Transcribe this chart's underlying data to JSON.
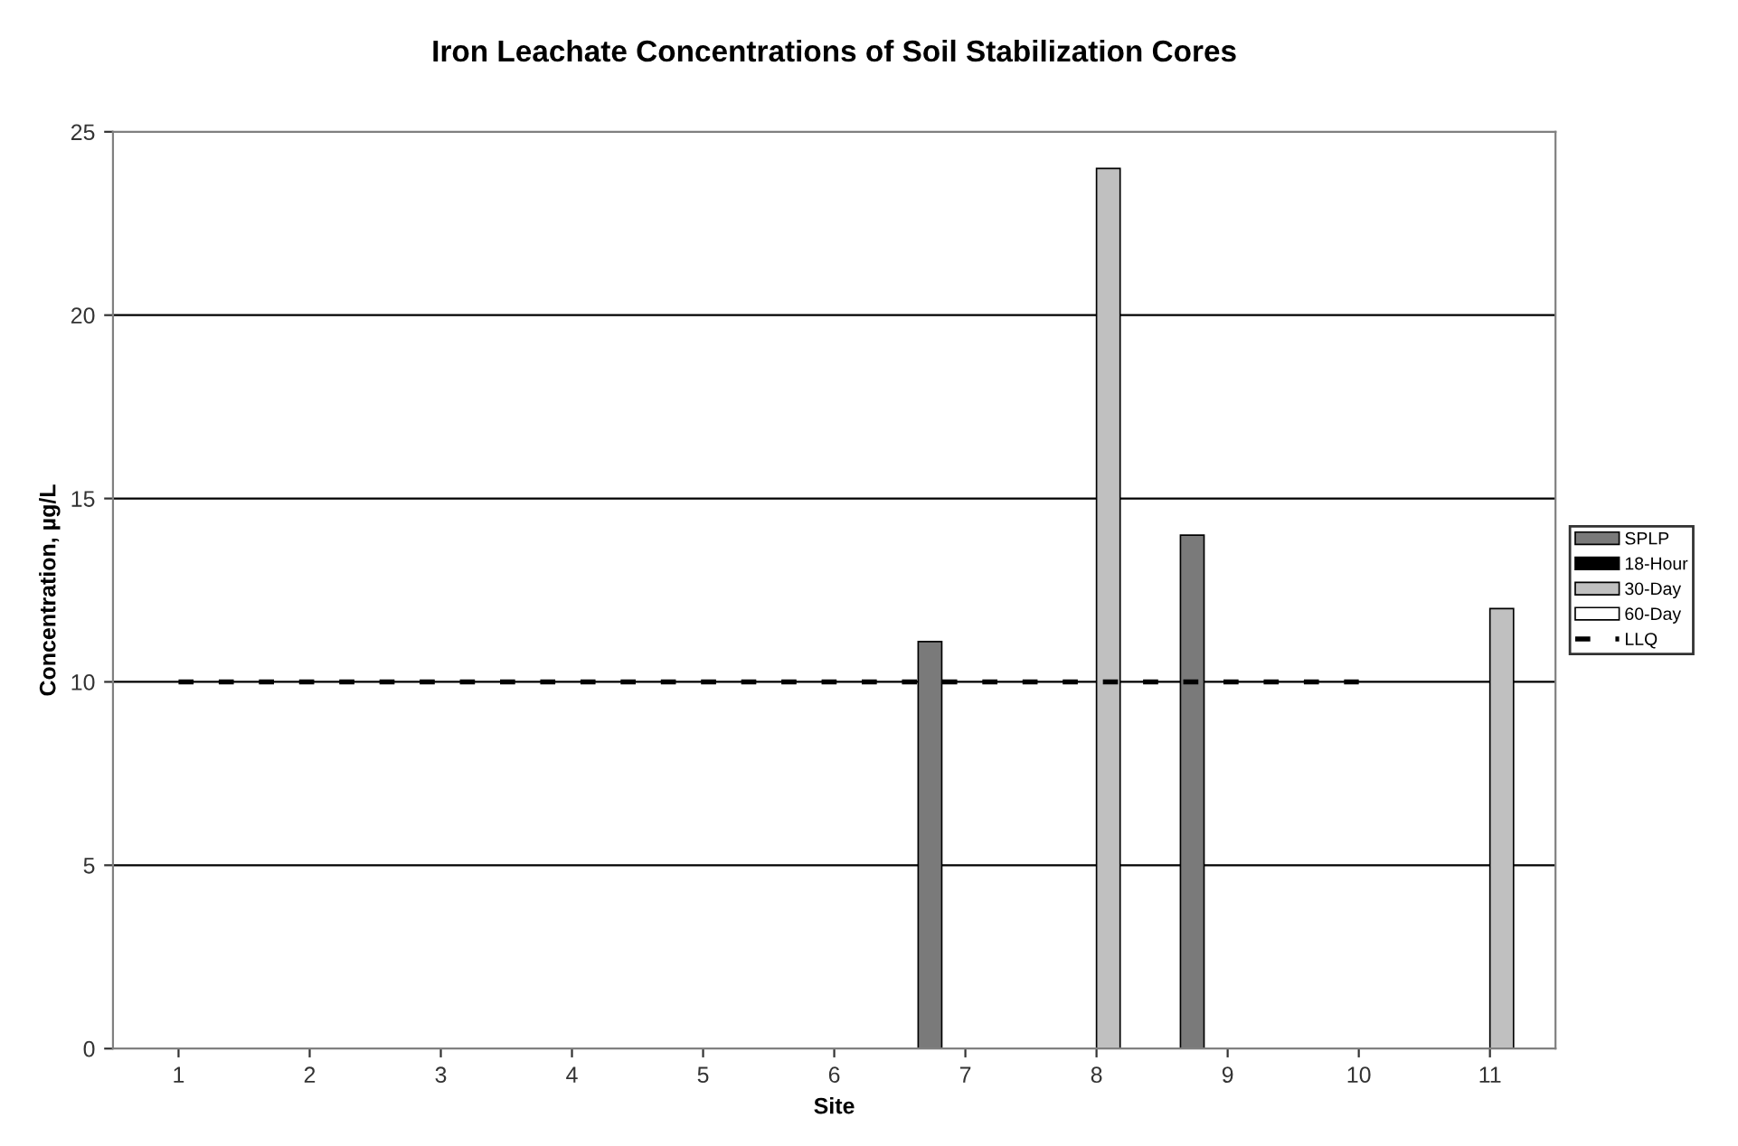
{
  "chart_data": {
    "type": "bar",
    "title": "Iron Leachate Concentrations of Soil Stabilization Cores",
    "xlabel": "Site",
    "ylabel": "Concentration, µg/L",
    "categories": [
      "1",
      "2",
      "3",
      "4",
      "5",
      "6",
      "7",
      "8",
      "9",
      "10",
      "11"
    ],
    "series": [
      {
        "name": "SPLP",
        "color": "#7a7a7a",
        "values": [
          null,
          null,
          null,
          null,
          null,
          null,
          11.1,
          null,
          14,
          null,
          null
        ]
      },
      {
        "name": "18-Hour",
        "color": "#000000",
        "values": [
          null,
          null,
          null,
          null,
          null,
          null,
          null,
          null,
          null,
          null,
          null
        ]
      },
      {
        "name": "30-Day",
        "color": "#c0c0c0",
        "values": [
          null,
          null,
          null,
          null,
          null,
          null,
          null,
          24,
          null,
          null,
          12
        ]
      },
      {
        "name": "60-Day",
        "color": "#ffffff",
        "values": [
          null,
          null,
          null,
          null,
          null,
          null,
          null,
          null,
          null,
          null,
          null
        ]
      },
      {
        "name": "LLQ",
        "type": "line",
        "color": "#000000",
        "line_style": "dashed",
        "values": [
          10,
          10,
          10,
          10,
          10,
          10,
          10,
          10,
          10,
          10,
          null
        ]
      }
    ],
    "ylim": [
      0,
      25
    ],
    "yticks": [
      0,
      5,
      10,
      15,
      20,
      25
    ],
    "grid": "y",
    "legend": "right"
  }
}
